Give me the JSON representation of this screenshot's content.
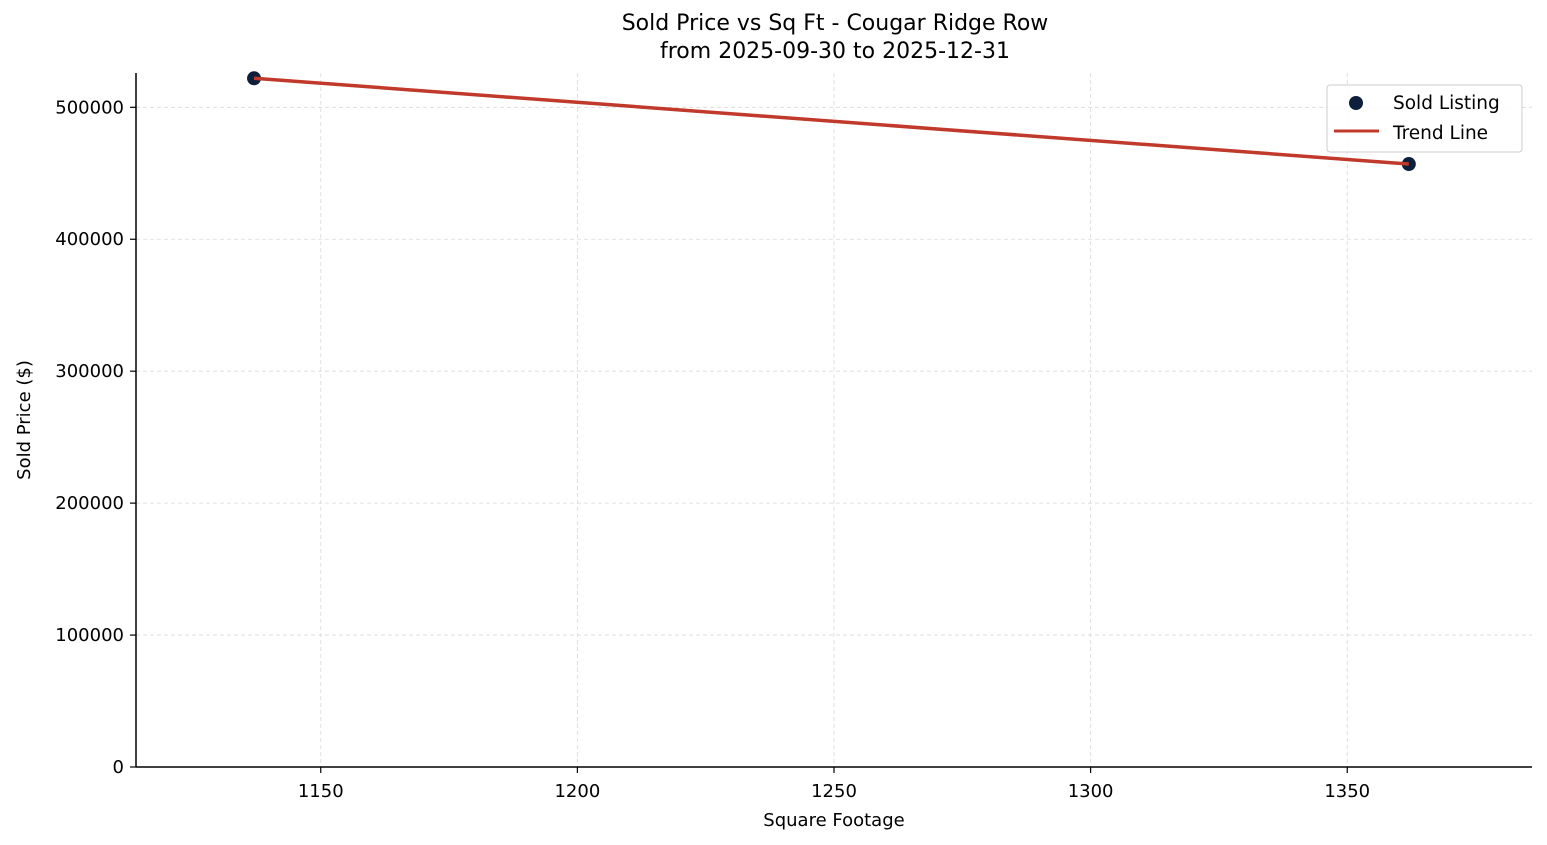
{
  "chart_data": {
    "type": "scatter",
    "title": "Sold Price vs Sq Ft - Cougar Ridge Row",
    "subtitle": "from 2025-09-30 to 2025-12-31",
    "xlabel": "Square Footage",
    "ylabel": "Sold Price ($)",
    "xlim": [
      1114,
      1386
    ],
    "ylim": [
      0,
      526000
    ],
    "xticks": [
      1150,
      1200,
      1250,
      1300,
      1350
    ],
    "yticks": [
      0,
      100000,
      200000,
      300000,
      400000,
      500000
    ],
    "grid": true,
    "legend_position": "top-right",
    "series": [
      {
        "name": "Sold Listing",
        "kind": "scatter",
        "color": "#0d1f3a",
        "points": [
          {
            "x": 1137,
            "y": 522000
          },
          {
            "x": 1362,
            "y": 457000
          }
        ]
      },
      {
        "name": "Trend Line",
        "kind": "line",
        "color": "#c0392b",
        "points": [
          {
            "x": 1137,
            "y": 522000
          },
          {
            "x": 1362,
            "y": 457000
          }
        ]
      }
    ]
  }
}
